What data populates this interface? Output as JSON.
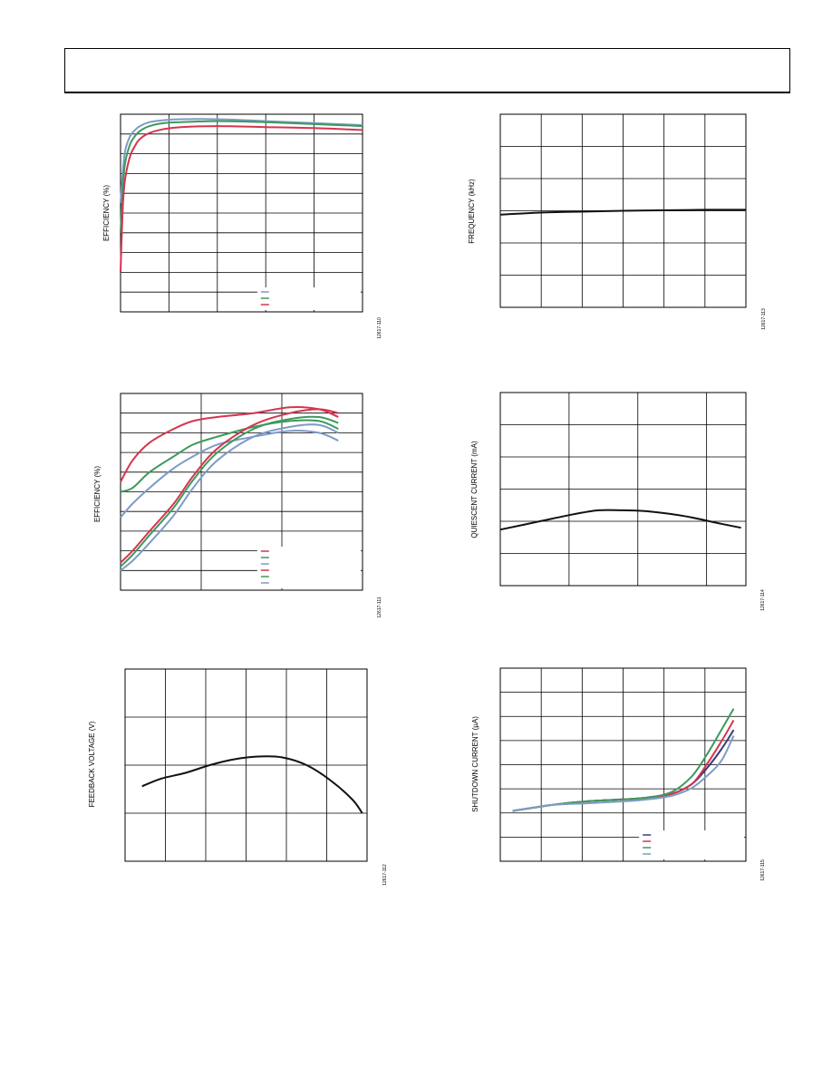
{
  "chart_data": [
    {
      "type": "line",
      "ylabel": "EFFICIENCY (%)",
      "figure_id": "12617-110",
      "xlim": [
        0,
        100
      ],
      "ylim": [
        0,
        100
      ],
      "x_divisions": 5,
      "y_divisions": 10,
      "legend": "bottom-right",
      "series": [
        {
          "color": "#7f9bc7",
          "x": [
            0,
            1,
            2,
            4,
            6,
            8,
            12,
            18,
            25,
            40,
            60,
            80,
            100
          ],
          "y": [
            55,
            72,
            82,
            89,
            92,
            94,
            96,
            97,
            97.5,
            97.5,
            96.5,
            95.5,
            94.5
          ]
        },
        {
          "color": "#3c9a5c",
          "x": [
            0,
            1,
            2,
            4,
            6,
            8,
            12,
            18,
            25,
            40,
            60,
            80,
            100
          ],
          "y": [
            40,
            65,
            76,
            85,
            89,
            91.5,
            94,
            95.5,
            96,
            96.5,
            96,
            95,
            94
          ]
        },
        {
          "color": "#d6344f",
          "x": [
            0,
            1,
            2,
            4,
            6,
            8,
            12,
            18,
            25,
            40,
            60,
            80,
            100
          ],
          "y": [
            20,
            55,
            68,
            79,
            84,
            87.5,
            90.5,
            92.5,
            93.5,
            94,
            93.5,
            93,
            92
          ]
        }
      ]
    },
    {
      "type": "line",
      "ylabel": "FREQUENCY (kHz)",
      "figure_id": "12617-113",
      "xlim": [
        0,
        100
      ],
      "ylim": [
        0,
        100
      ],
      "x_divisions": 6,
      "y_divisions": 6,
      "series": [
        {
          "color": "#111111",
          "x": [
            0,
            15,
            30,
            50,
            70,
            85,
            100
          ],
          "y": [
            48,
            49,
            49.5,
            50,
            50.3,
            50.5,
            50.5
          ]
        }
      ]
    },
    {
      "type": "line",
      "ylabel": "EFFICIENCY (%)",
      "figure_id": "12617-111",
      "xlim": [
        0,
        100
      ],
      "ylim": [
        0,
        100
      ],
      "x_divisions": 3,
      "y_divisions": 10,
      "legend": "bottom-right",
      "series": [
        {
          "color": "#d6344f",
          "x": [
            0,
            5,
            12,
            22,
            30,
            40,
            55,
            70,
            82,
            90
          ],
          "y": [
            55,
            66,
            75,
            82,
            86,
            88,
            90,
            93,
            92,
            88
          ]
        },
        {
          "color": "#3c9a5c",
          "x": [
            0,
            5,
            12,
            22,
            30,
            40,
            55,
            70,
            82,
            90
          ],
          "y": [
            50,
            52,
            60,
            68,
            74,
            78,
            83,
            86,
            86,
            82
          ]
        },
        {
          "color": "#7f9bc7",
          "x": [
            0,
            5,
            12,
            22,
            30,
            40,
            55,
            70,
            82,
            90
          ],
          "y": [
            37,
            44,
            52,
            62,
            68,
            74,
            78,
            81,
            80,
            76
          ]
        },
        {
          "color": "#d6344f",
          "x": [
            0,
            5,
            12,
            22,
            30,
            40,
            55,
            70,
            82,
            90
          ],
          "y": [
            14,
            20,
            30,
            44,
            58,
            72,
            84,
            90,
            92,
            90
          ]
        },
        {
          "color": "#3c9a5c",
          "x": [
            0,
            5,
            12,
            22,
            30,
            40,
            55,
            70,
            82,
            90
          ],
          "y": [
            12,
            18,
            28,
            42,
            56,
            70,
            82,
            87,
            88,
            85
          ]
        },
        {
          "color": "#7f9bc7",
          "x": [
            0,
            5,
            12,
            22,
            30,
            40,
            55,
            70,
            82,
            90
          ],
          "y": [
            10,
            15,
            24,
            38,
            52,
            66,
            78,
            83,
            84,
            80
          ]
        }
      ]
    },
    {
      "type": "line",
      "ylabel": "QUIESCENT CURRENT (mA)",
      "figure_id": "12617-114",
      "xlim": [
        0,
        100
      ],
      "ylim": [
        0,
        100
      ],
      "x_divisions": [
        0,
        28,
        56,
        84,
        100
      ],
      "y_divisions": 6,
      "series": [
        {
          "color": "#111111",
          "x": [
            0,
            15,
            30,
            40,
            50,
            60,
            75,
            90,
            98
          ],
          "y": [
            29,
            33,
            37,
            39,
            39,
            38.5,
            36,
            32,
            30
          ]
        }
      ]
    },
    {
      "type": "line",
      "ylabel": "FEEDBACK VOLTAGE (V)",
      "figure_id": "12617-112",
      "xlim": [
        0,
        100
      ],
      "ylim": [
        0,
        100
      ],
      "x_divisions": 6,
      "y_divisions": 4,
      "series": [
        {
          "color": "#111111",
          "x": [
            7,
            15,
            25,
            35,
            45,
            55,
            65,
            75,
            85,
            94,
            98
          ],
          "y": [
            39,
            43,
            46,
            50,
            53,
            54.5,
            54,
            50,
            42,
            32,
            25
          ]
        }
      ]
    },
    {
      "type": "line",
      "ylabel": "SHUTDOWN CURRENT (µA)",
      "figure_id": "12617-115",
      "xlim": [
        0,
        100
      ],
      "ylim": [
        0,
        100
      ],
      "x_divisions": 6,
      "y_divisions": 8,
      "legend": "bottom-right",
      "series": [
        {
          "color": "#3c3c78",
          "x": [
            5,
            20,
            35,
            50,
            60,
            70,
            78,
            84,
            90,
            95
          ],
          "y": [
            26,
            29,
            31,
            32,
            33,
            35,
            40,
            48,
            58,
            68
          ]
        },
        {
          "color": "#d6344f",
          "x": [
            5,
            20,
            35,
            50,
            60,
            70,
            78,
            84,
            90,
            95
          ],
          "y": [
            26,
            29,
            31,
            32,
            33,
            35,
            40,
            50,
            62,
            73
          ]
        },
        {
          "color": "#3c9a5c",
          "x": [
            5,
            20,
            35,
            50,
            60,
            70,
            78,
            84,
            90,
            95
          ],
          "y": [
            26,
            29,
            31,
            32,
            33,
            36,
            44,
            55,
            68,
            79
          ]
        },
        {
          "color": "#7f9bc7",
          "x": [
            5,
            20,
            35,
            50,
            60,
            70,
            78,
            84,
            90,
            95
          ],
          "y": [
            26,
            29,
            30,
            31,
            32,
            34,
            38,
            44,
            52,
            65
          ]
        }
      ]
    }
  ]
}
